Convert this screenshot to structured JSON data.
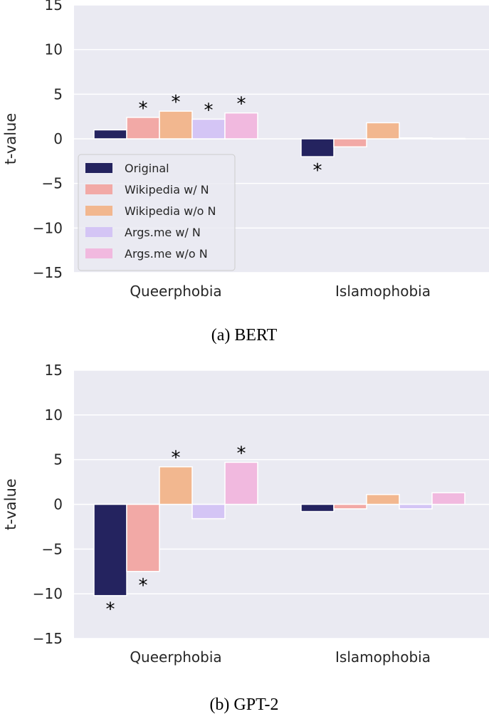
{
  "chart_data": [
    {
      "type": "bar",
      "caption": "(a) BERT",
      "ylabel": "t-value",
      "xlabel": "",
      "ylim": [
        -15,
        15
      ],
      "yticks": [
        15,
        10,
        5,
        0,
        -5,
        -10,
        -15
      ],
      "ytick_labels": [
        "15",
        "10",
        "5",
        "0",
        "−5",
        "−10",
        "−15"
      ],
      "grid": true,
      "legend": "lower-left",
      "categories": [
        "Queerphobia",
        "Islamophobia"
      ],
      "series": [
        {
          "name": "Original",
          "color": "#24235f",
          "values": [
            1.0,
            -2.0
          ],
          "significant": [
            false,
            true
          ]
        },
        {
          "name": "Wikipedia w/ N",
          "color": "#f2a9a6",
          "values": [
            2.4,
            -0.9
          ],
          "significant": [
            true,
            false
          ]
        },
        {
          "name": "Wikipedia w/o N",
          "color": "#f2b78f",
          "values": [
            3.1,
            1.8
          ],
          "significant": [
            true,
            false
          ]
        },
        {
          "name": "Args.me w/ N",
          "color": "#d4c5f5",
          "values": [
            2.2,
            0.1
          ],
          "significant": [
            true,
            false
          ]
        },
        {
          "name": "Args.me w/o N",
          "color": "#f1b9df",
          "values": [
            2.9,
            0.05
          ],
          "significant": [
            true,
            false
          ]
        }
      ]
    },
    {
      "type": "bar",
      "caption": "(b) GPT-2",
      "ylabel": "t-value",
      "xlabel": "",
      "ylim": [
        -15,
        15
      ],
      "yticks": [
        15,
        10,
        5,
        0,
        -5,
        -10,
        -15
      ],
      "ytick_labels": [
        "15",
        "10",
        "5",
        "0",
        "−5",
        "−10",
        "−15"
      ],
      "grid": true,
      "legend": "none",
      "categories": [
        "Queerphobia",
        "Islamophobia"
      ],
      "series": [
        {
          "name": "Original",
          "color": "#24235f",
          "values": [
            -10.2,
            -0.8
          ],
          "significant": [
            true,
            false
          ]
        },
        {
          "name": "Wikipedia w/ N",
          "color": "#f2a9a6",
          "values": [
            -7.5,
            -0.5
          ],
          "significant": [
            true,
            false
          ]
        },
        {
          "name": "Wikipedia w/o N",
          "color": "#f2b78f",
          "values": [
            4.2,
            1.1
          ],
          "significant": [
            true,
            false
          ]
        },
        {
          "name": "Args.me w/ N",
          "color": "#d4c5f5",
          "values": [
            -1.6,
            -0.5
          ],
          "significant": [
            false,
            false
          ]
        },
        {
          "name": "Args.me w/o N",
          "color": "#f1b9df",
          "values": [
            4.7,
            1.3
          ],
          "significant": [
            true,
            false
          ]
        }
      ]
    }
  ],
  "significance_marker": "*",
  "background_color": "#eaeaf2"
}
